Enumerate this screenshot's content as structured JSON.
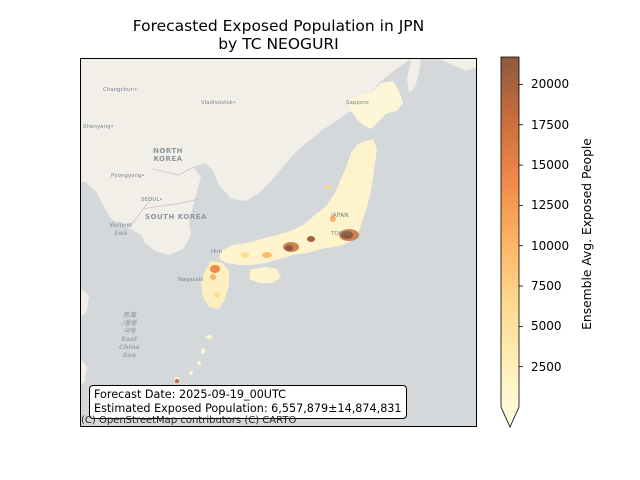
{
  "title": {
    "line1": "Forecasted Exposed Population in JPN",
    "line2": "by TC NEOGURI"
  },
  "map": {
    "places": {
      "changchun": "Changchun•",
      "vladivostok": "Vladivostok•",
      "sapporo": "Sapporo",
      "shenyang": "Shenyang•",
      "pyongyang": "Pyongyang•",
      "seoul": "SEOUL•",
      "hiroshima": "Hiro",
      "nagasaki": "Nagasaki",
      "japan": "JAPAN",
      "tokyo": "TOKYO"
    },
    "countries": {
      "north_korea_1": "NORTH",
      "north_korea_2": "KOREA",
      "south_korea": "SOUTH KOREA"
    },
    "seas": {
      "yellow_1": "Yellow",
      "yellow_2": "Sea",
      "east_china_1": "东海",
      "east_china_2": "/동중",
      "east_china_3": "국해",
      "east_china_4": "East",
      "east_china_5": "China",
      "east_china_6": "Sea"
    },
    "info_box": {
      "line1": "Forecast Date: 2025-09-19_00UTC",
      "line2": "Estimated Exposed Population: 6,557,879±14,874,831"
    },
    "attribution": "(C) OpenStreetMap contributors (C) CARTO"
  },
  "colorbar": {
    "label": "Ensemble Avg. Exposed People",
    "min": 0,
    "max": 21700,
    "extend": "min",
    "ticks": [
      {
        "value": 2500,
        "label": "2500"
      },
      {
        "value": 5000,
        "label": "5000"
      },
      {
        "value": 7500,
        "label": "7500"
      },
      {
        "value": 10000,
        "label": "10000"
      },
      {
        "value": 12500,
        "label": "12500"
      },
      {
        "value": 15000,
        "label": "15000"
      },
      {
        "value": 17500,
        "label": "17500"
      },
      {
        "value": 20000,
        "label": "20000"
      }
    ],
    "colors": [
      "#fffee6",
      "#fff0b8",
      "#fed98e",
      "#fdb466",
      "#f0894a",
      "#c96d3c",
      "#8b5a3f"
    ]
  }
}
